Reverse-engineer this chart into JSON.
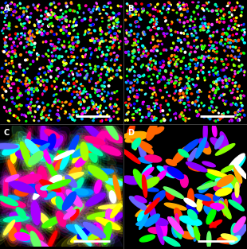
{
  "background_color": "#000000",
  "panel_labels": [
    "A",
    "B",
    "C",
    "D"
  ],
  "label_color": "#ffffff",
  "label_fontsize": 7,
  "colors_28": [
    "#ff0000",
    "#00ff00",
    "#0000ff",
    "#ffff00",
    "#ff00ff",
    "#00ffff",
    "#ffffff",
    "#ff8800",
    "#88ff00",
    "#0088ff",
    "#ff0088",
    "#8800ff",
    "#00ff88",
    "#ff4400",
    "#44ff00",
    "#0044ff",
    "#ffff44",
    "#ff44ff",
    "#44ffff",
    "#ffaa00",
    "#aaff00",
    "#00aaff",
    "#ff00aa",
    "#aa00ff",
    "#00ffaa",
    "#ff6600",
    "#66ff66",
    "#6666ff"
  ],
  "seed_A": 42,
  "seed_B": 137,
  "seed_C": 7,
  "seed_D": 99,
  "n_cells_AB": 900,
  "n_cells_CD": 120,
  "figsize": [
    3.1,
    3.13
  ],
  "dpi": 100
}
